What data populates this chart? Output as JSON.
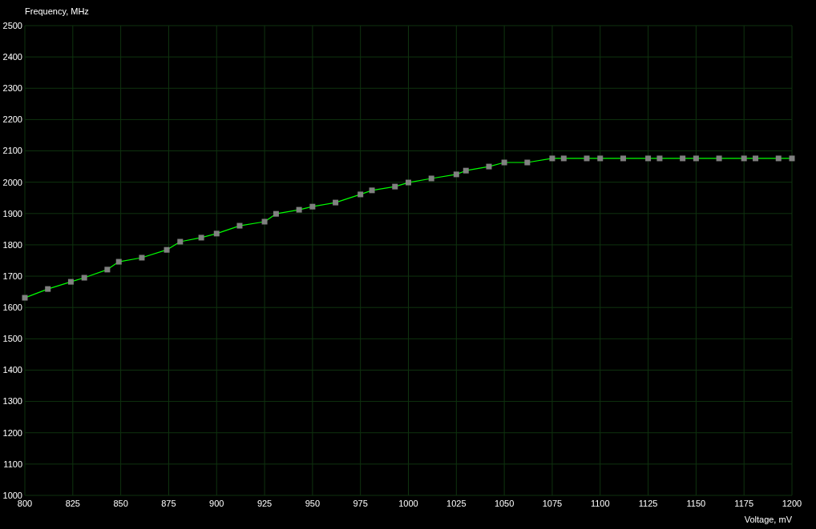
{
  "chart_data": {
    "type": "line",
    "xlabel": "Voltage, mV",
    "ylabel": "Frequency, MHz",
    "x": [
      800,
      812,
      824,
      831,
      843,
      849,
      861,
      874,
      881,
      892,
      900,
      912,
      925,
      931,
      943,
      950,
      962,
      975,
      981,
      993,
      1000,
      1012,
      1025,
      1030,
      1042,
      1050,
      1062,
      1075,
      1081,
      1093,
      1100,
      1112,
      1125,
      1131,
      1143,
      1150,
      1162,
      1175,
      1181,
      1193,
      1200
    ],
    "series": [
      {
        "color": "#00ff00",
        "values": [
          1631,
          1659,
          1682,
          1695,
          1721,
          1746,
          1759,
          1784,
          1810,
          1823,
          1836,
          1861,
          1874,
          1899,
          1912,
          1922,
          1935,
          1961,
          1974,
          1986,
          1999,
          2012,
          2025,
          2037,
          2050,
          2063,
          2063,
          2076,
          2076,
          2076,
          2076,
          2076,
          2076,
          2076,
          2076,
          2076,
          2076,
          2076,
          2076,
          2076,
          2076
        ]
      }
    ],
    "xlim": [
      800,
      1200
    ],
    "ylim": [
      1000,
      2500
    ],
    "xticks": [
      800,
      825,
      850,
      875,
      900,
      925,
      950,
      975,
      1000,
      1025,
      1050,
      1075,
      1100,
      1125,
      1150,
      1175,
      1200
    ],
    "yticks": [
      1000,
      1100,
      1200,
      1300,
      1400,
      1500,
      1600,
      1700,
      1800,
      1900,
      2000,
      2100,
      2200,
      2300,
      2400,
      2500
    ],
    "grid": true,
    "marker": "square",
    "line_style": "solid"
  }
}
